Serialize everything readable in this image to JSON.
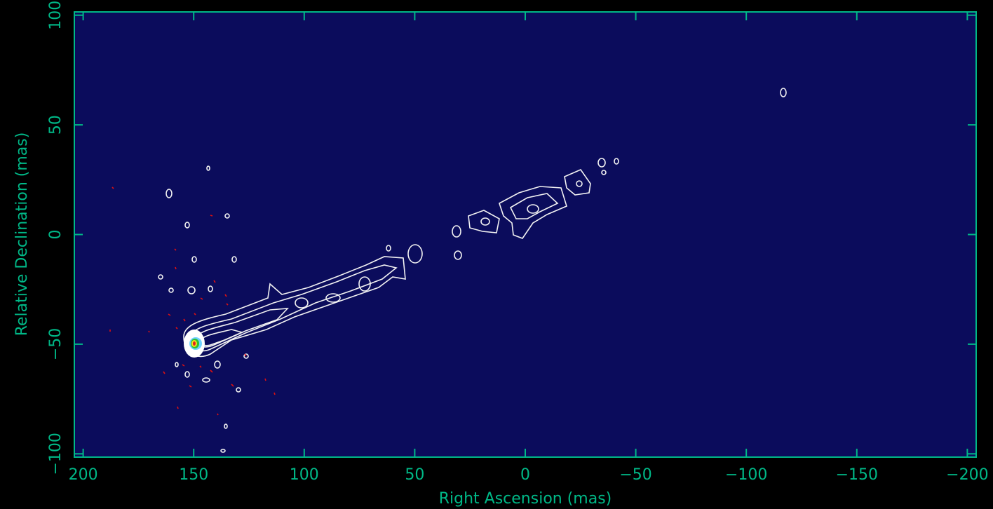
{
  "chart_data": {
    "type": "contour",
    "x_label": "Right Ascension  (mas)",
    "y_label": "Relative Declination  (mas)",
    "xlim": [
      204,
      -204
    ],
    "ylim": [
      -101.5,
      101.5
    ],
    "xticks": [
      200,
      150,
      100,
      50,
      0,
      {
        "value": -50,
        "label": "−50"
      },
      {
        "value": -100,
        "label": "−100"
      },
      {
        "value": -150,
        "label": "−150"
      },
      {
        "value": -200,
        "label": "−200"
      }
    ],
    "yticks": [
      {
        "value": -100,
        "label": "−100"
      },
      {
        "value": -50,
        "label": "−50"
      },
      0,
      50,
      100
    ],
    "axis_color": "#00b887",
    "background": "#0b0c5c"
  }
}
